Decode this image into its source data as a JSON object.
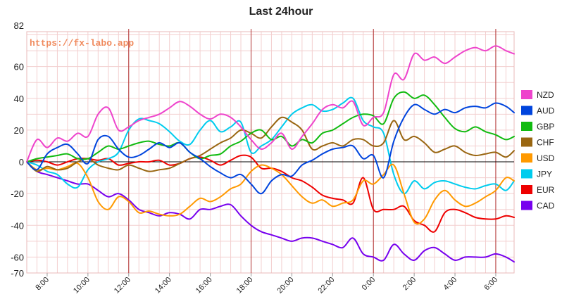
{
  "chart_data": {
    "type": "line",
    "title": "Last 24hour",
    "watermark": "https://fx-labo.app",
    "ylim": [
      -70,
      82
    ],
    "y_ticks": [
      -70,
      -60,
      -40,
      -20,
      0,
      20,
      40,
      60,
      82
    ],
    "x_range": [
      7.0,
      30.9
    ],
    "x_ticks": [
      {
        "v": 8,
        "label": "8:00"
      },
      {
        "v": 10,
        "label": "10:00"
      },
      {
        "v": 12,
        "label": "12:00"
      },
      {
        "v": 14,
        "label": "14:00"
      },
      {
        "v": 16,
        "label": "16:00"
      },
      {
        "v": 18,
        "label": "18:00"
      },
      {
        "v": 20,
        "label": "20:00"
      },
      {
        "v": 22,
        "label": "22:00"
      },
      {
        "v": 24,
        "label": "0:00"
      },
      {
        "v": 26,
        "label": "2:00"
      },
      {
        "v": 28,
        "label": "4:00"
      },
      {
        "v": 30,
        "label": "6:00"
      }
    ],
    "session_lines": [
      12,
      18,
      24,
      30
    ],
    "x": [
      7.0,
      7.5,
      8.0,
      8.5,
      9.0,
      9.5,
      10.0,
      10.5,
      11.0,
      11.5,
      12.0,
      12.5,
      13.0,
      13.5,
      14.0,
      14.5,
      15.0,
      15.5,
      16.0,
      16.5,
      17.0,
      17.5,
      18.0,
      18.5,
      19.0,
      19.5,
      20.0,
      20.5,
      21.0,
      21.5,
      22.0,
      22.5,
      23.0,
      23.5,
      24.0,
      24.5,
      25.0,
      25.5,
      26.0,
      26.5,
      27.0,
      27.5,
      28.0,
      28.5,
      29.0,
      29.5,
      30.0,
      30.5,
      30.9
    ],
    "series": [
      {
        "name": "NZD",
        "color": "#ee44cc",
        "values": [
          0,
          14,
          9,
          15,
          13,
          18,
          16,
          30,
          34,
          20,
          22,
          26,
          28,
          30,
          34,
          38,
          35,
          30,
          27,
          30,
          28,
          22,
          14,
          8,
          12,
          18,
          8,
          16,
          24,
          33,
          36,
          34,
          38,
          23,
          28,
          31,
          55,
          52,
          68,
          64,
          66,
          62,
          66,
          70,
          72,
          70,
          73,
          70,
          68
        ]
      },
      {
        "name": "AUD",
        "color": "#0044dd",
        "values": [
          0,
          -5,
          5,
          9,
          11,
          5,
          -1,
          14,
          16,
          8,
          3,
          4,
          8,
          12,
          9,
          12,
          6,
          2,
          -3,
          -7,
          -10,
          -8,
          -14,
          -20,
          -12,
          -8,
          -9,
          -2,
          1,
          5,
          8,
          9,
          10,
          2,
          4,
          -10,
          13,
          28,
          36,
          33,
          30,
          33,
          31,
          34,
          35,
          34,
          37,
          35,
          31
        ]
      },
      {
        "name": "GBP",
        "color": "#11bb11",
        "values": [
          0,
          2,
          3,
          4,
          5,
          2,
          2,
          6,
          10,
          8,
          10,
          12,
          13,
          11,
          10,
          12,
          6,
          2,
          4,
          5,
          10,
          13,
          18,
          20,
          14,
          16,
          10,
          14,
          12,
          18,
          20,
          24,
          28,
          30,
          29,
          24,
          40,
          44,
          40,
          42,
          36,
          28,
          21,
          19,
          22,
          19,
          17,
          14,
          16
        ]
      },
      {
        "name": "CHF",
        "color": "#996611",
        "values": [
          0,
          -6,
          -3,
          -5,
          -4,
          0,
          2,
          -2,
          -4,
          -5,
          -2,
          -4,
          -6,
          -5,
          -4,
          -1,
          2,
          4,
          8,
          12,
          15,
          20,
          18,
          15,
          22,
          28,
          25,
          20,
          8,
          10,
          12,
          10,
          14,
          14,
          10,
          12,
          26,
          14,
          16,
          12,
          6,
          8,
          10,
          6,
          4,
          5,
          6,
          3,
          7
        ]
      },
      {
        "name": "USD",
        "color": "#ff9900",
        "values": [
          0,
          -5,
          -4,
          -5,
          -3,
          -1,
          -10,
          -25,
          -30,
          -22,
          -25,
          -32,
          -31,
          -33,
          -34,
          -33,
          -28,
          -23,
          -25,
          -22,
          -17,
          -14,
          -6,
          -2,
          -4,
          -8,
          -15,
          -22,
          -26,
          -24,
          -28,
          -26,
          -24,
          -12,
          -14,
          -8,
          -2,
          -20,
          -38,
          -36,
          -24,
          -18,
          -24,
          -28,
          -26,
          -22,
          -18,
          -10,
          -12
        ]
      },
      {
        "name": "JPY",
        "color": "#00ccee",
        "values": [
          0,
          -2,
          -6,
          -8,
          -14,
          -16,
          -5,
          0,
          2,
          6,
          20,
          27,
          26,
          24,
          19,
          13,
          11,
          20,
          26,
          19,
          22,
          25,
          6,
          10,
          14,
          22,
          30,
          34,
          36,
          32,
          33,
          37,
          40,
          26,
          22,
          18,
          -8,
          -20,
          -12,
          -17,
          -13,
          -12,
          -14,
          -16,
          -17,
          -15,
          -14,
          -18,
          -12
        ]
      },
      {
        "name": "EUR",
        "color": "#ee0000",
        "values": [
          0,
          1,
          0,
          -2,
          0,
          2,
          2,
          1,
          2,
          -2,
          -1,
          0,
          0,
          1,
          -2,
          -1,
          2,
          3,
          1,
          -2,
          1,
          4,
          3,
          -4,
          -4,
          -6,
          -10,
          -12,
          -16,
          -21,
          -23,
          -24,
          -26,
          -10,
          -30,
          -30,
          -30,
          -28,
          -37,
          -40,
          -44,
          -32,
          -30,
          -32,
          -35,
          -36,
          -36,
          -34,
          -35
        ]
      },
      {
        "name": "CAD",
        "color": "#7700ee",
        "values": [
          0,
          -6,
          -8,
          -10,
          -12,
          -14,
          -14,
          -18,
          -22,
          -20,
          -24,
          -30,
          -32,
          -34,
          -32,
          -33,
          -36,
          -30,
          -30,
          -28,
          -27,
          -34,
          -40,
          -44,
          -46,
          -48,
          -50,
          -48,
          -48,
          -50,
          -52,
          -54,
          -48,
          -58,
          -60,
          -62,
          -52,
          -58,
          -62,
          -56,
          -54,
          -58,
          -62,
          -60,
          -60,
          -60,
          -58,
          -60,
          -63
        ]
      }
    ]
  }
}
